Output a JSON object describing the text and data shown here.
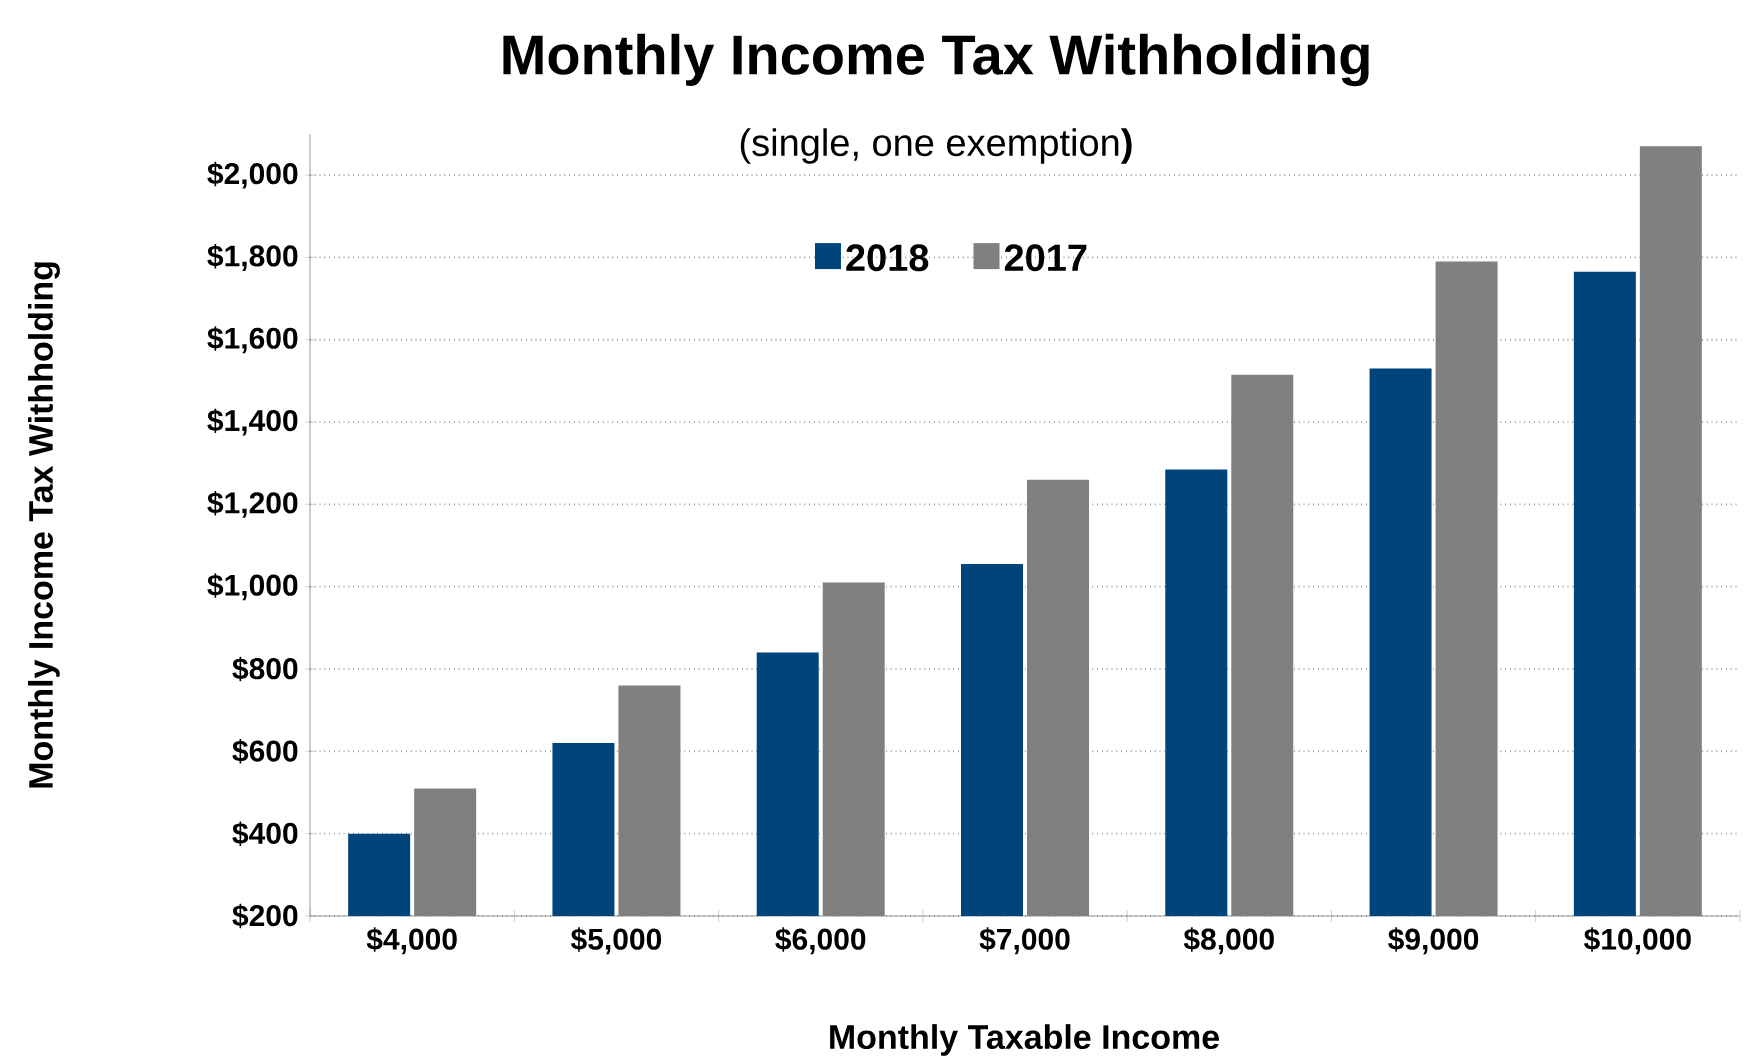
{
  "chart_data": {
    "type": "bar",
    "title": "Monthly Income Tax Withholding",
    "subtitle": "(single, one exemption**)**",
    "xlabel": "Monthly Taxable Income",
    "ylabel": "Monthly Income Tax Withholding",
    "categories": [
      "$4,000",
      "$5,000",
      "$6,000",
      "$7,000",
      "$8,000",
      "$9,000",
      "$10,000"
    ],
    "series": [
      {
        "name": "2018",
        "color": "#00447c",
        "values": [
          400,
          620,
          840,
          1055,
          1285,
          1530,
          1765
        ]
      },
      {
        "name": "2017",
        "color": "#808080",
        "values": [
          510,
          760,
          1010,
          1260,
          1515,
          1790,
          2070
        ]
      }
    ],
    "ylim": [
      200,
      2100
    ],
    "yticks": [
      {
        "value": 200,
        "label": "$200"
      },
      {
        "value": 400,
        "label": "$400"
      },
      {
        "value": 600,
        "label": "$600"
      },
      {
        "value": 800,
        "label": "$800"
      },
      {
        "value": 1000,
        "label": "$1,000"
      },
      {
        "value": 1200,
        "label": "$1,200"
      },
      {
        "value": 1400,
        "label": "$1,400"
      },
      {
        "value": 1600,
        "label": "$1,600"
      },
      {
        "value": 1800,
        "label": "$1,800"
      },
      {
        "value": 2000,
        "label": "$2,000"
      }
    ],
    "grid": "y",
    "legend": "top"
  }
}
